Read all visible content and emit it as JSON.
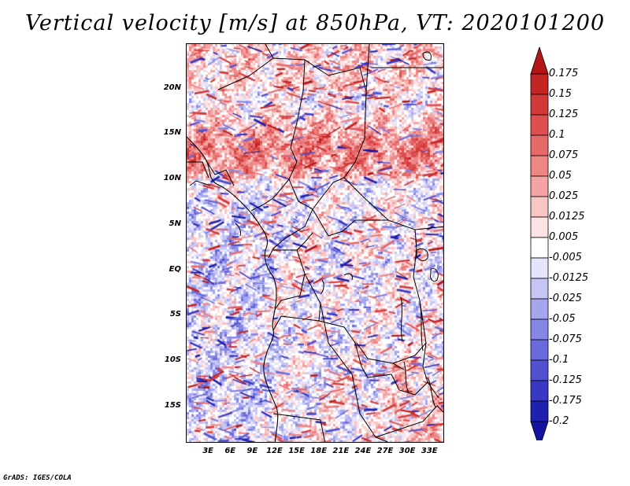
{
  "title": "Vertical velocity [m/s] at 850hPa, VT: 2020101200",
  "footer": "GrADS: IGES/COLA",
  "map": {
    "variable": "Vertical velocity",
    "units": "m/s",
    "level": "850hPa",
    "valid_time": "2020101200",
    "region": "Central Africa",
    "lon_range": [
      0,
      35
    ],
    "lat_range": [
      -19,
      25
    ],
    "lat_labels": [
      "20N",
      "15N",
      "10N",
      "5N",
      "EQ",
      "5S",
      "10S",
      "15S"
    ],
    "lon_labels": [
      "3E",
      "6E",
      "9E",
      "12E",
      "15E",
      "18E",
      "21E",
      "24E",
      "27E",
      "30E",
      "33E"
    ]
  },
  "colorbar": {
    "labels": [
      "0.175",
      "0.15",
      "0.125",
      "0.1",
      "0.075",
      "0.05",
      "0.025",
      "0.0125",
      "0.005",
      "-0.005",
      "-0.0125",
      "-0.025",
      "-0.05",
      "-0.075",
      "-0.1",
      "-0.125",
      "-0.175",
      "-0.2"
    ],
    "colors": [
      "#b41616",
      "#c42424",
      "#d23a3a",
      "#de5050",
      "#e66a6a",
      "#ee8686",
      "#f4a4a4",
      "#f9c6c6",
      "#fde4e4",
      "#ffffff",
      "#e4e4fb",
      "#c6c6f5",
      "#a6a6ee",
      "#8686e6",
      "#6a6adc",
      "#5050d0",
      "#3838c2",
      "#2020b0",
      "#1414a0"
    ]
  }
}
